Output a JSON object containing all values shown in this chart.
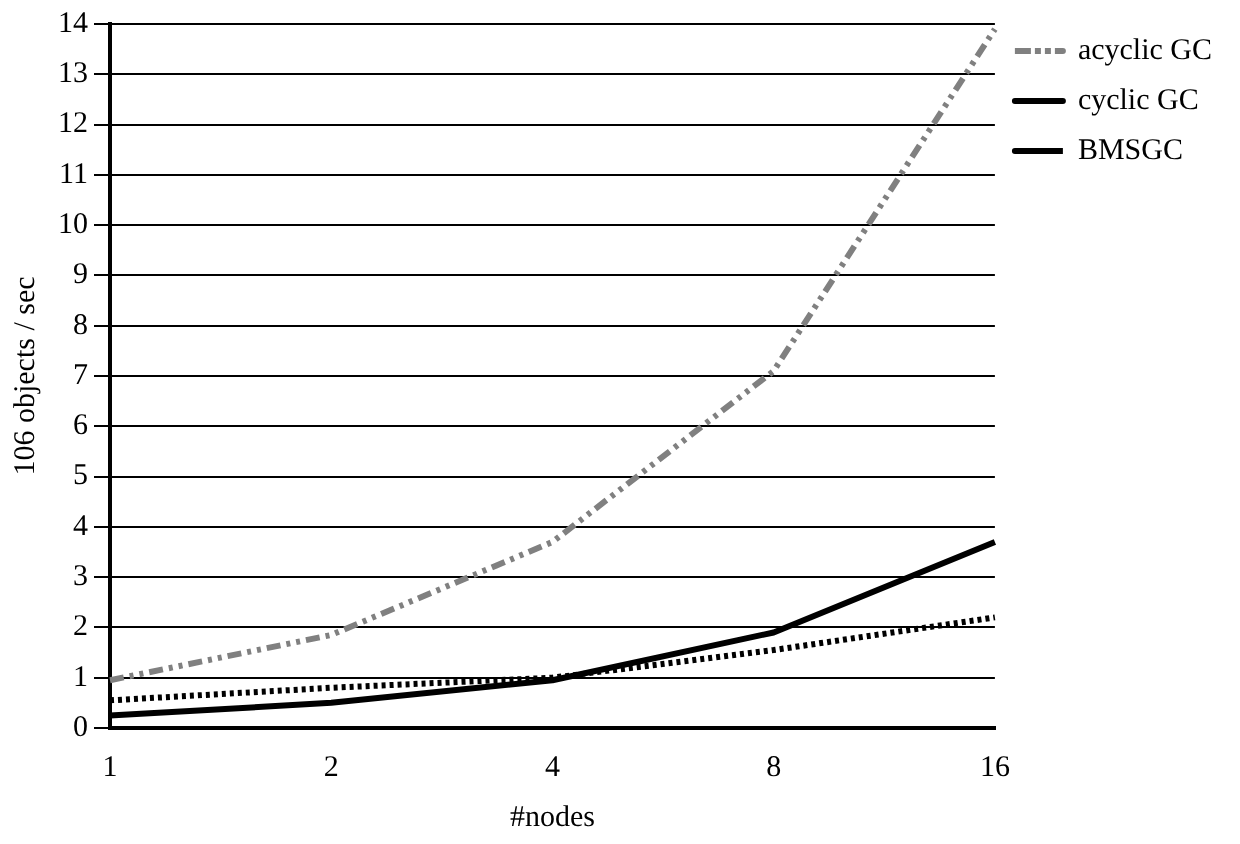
{
  "chart_data": {
    "type": "line",
    "xlabel": "#nodes",
    "ylabel": "106 objects / sec",
    "categories": [
      "1",
      "2",
      "4",
      "8",
      "16"
    ],
    "series": [
      {
        "name": "acyclic GC",
        "color": "#808080",
        "line_style": "dashed",
        "values": [
          0.95,
          1.85,
          3.7,
          7.1,
          13.9
        ]
      },
      {
        "name": "cyclic GC",
        "color": "#000000",
        "line_style": "solid",
        "values": [
          0.25,
          0.5,
          0.95,
          1.9,
          3.7
        ]
      },
      {
        "name": "BMSGC",
        "color": "#000000",
        "line_style": "dotted",
        "values": [
          0.55,
          0.8,
          1.0,
          1.55,
          2.2
        ]
      }
    ],
    "ylim": [
      0,
      14
    ],
    "yticks": [
      0,
      1,
      2,
      3,
      4,
      5,
      6,
      7,
      8,
      9,
      10,
      11,
      12,
      13,
      14
    ],
    "grid": "y",
    "legend": "right",
    "marker": "none"
  }
}
